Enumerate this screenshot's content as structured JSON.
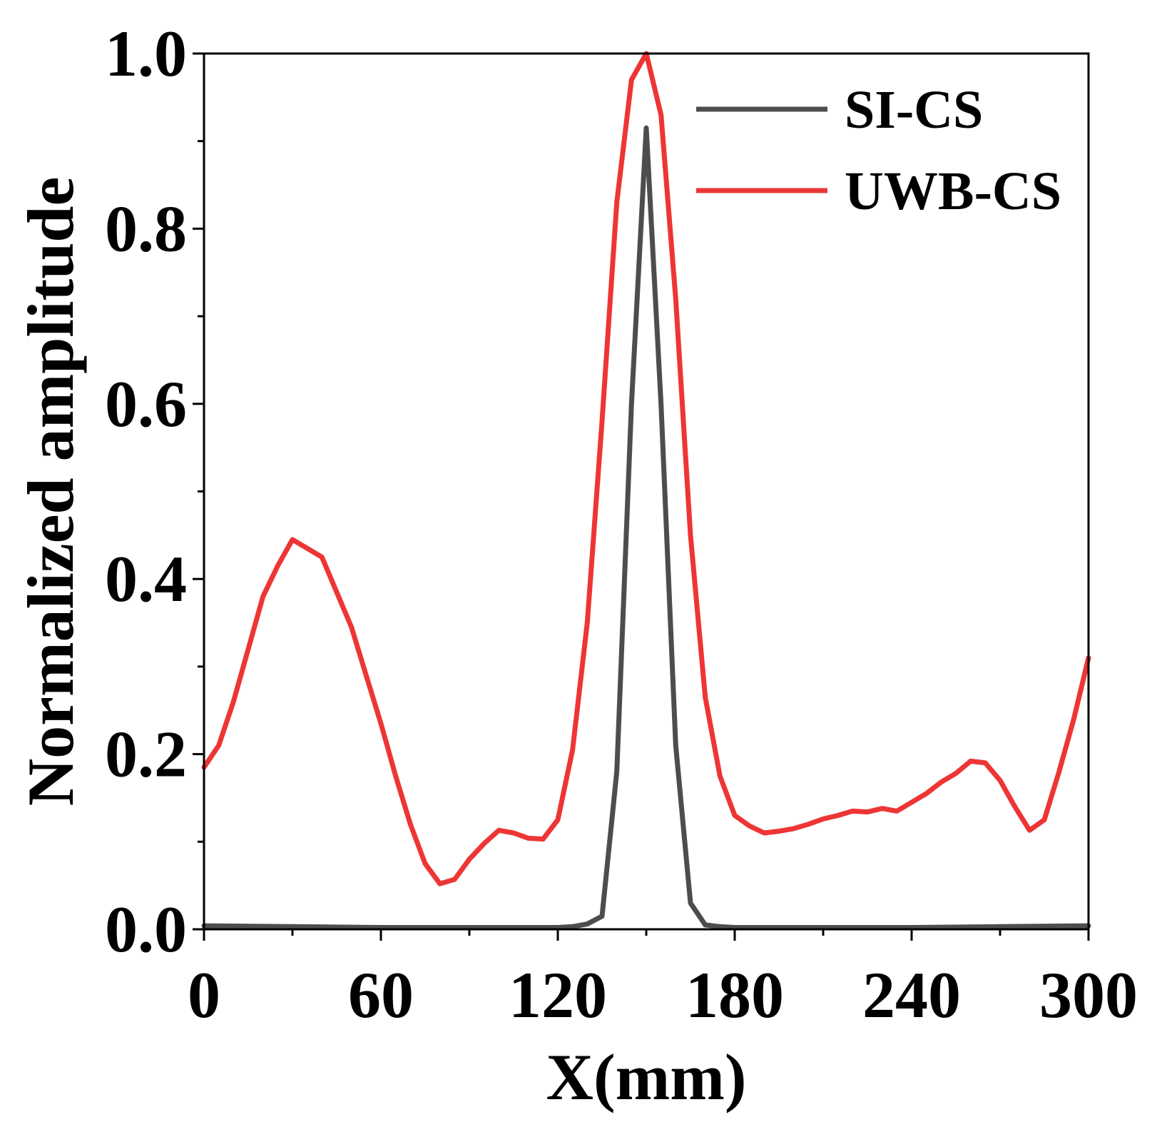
{
  "chart_data": {
    "type": "line",
    "title": "",
    "xlabel": "X(mm)",
    "ylabel": "Normalized amplitude",
    "xlim": [
      0,
      300
    ],
    "ylim": [
      0,
      1.0
    ],
    "grid": false,
    "legend_position": "top-right",
    "x_ticks": [
      0,
      60,
      120,
      180,
      240,
      300
    ],
    "x_tick_labels": [
      "0",
      "60",
      "120",
      "180",
      "240",
      "300"
    ],
    "y_ticks": [
      0,
      0.2,
      0.4,
      0.6,
      0.8,
      1.0
    ],
    "y_tick_labels": [
      "0.0",
      "0.2",
      "0.4",
      "0.6",
      "0.8",
      "1.0"
    ],
    "series": [
      {
        "name": "SI-CS",
        "color": "#4d4d4d",
        "x": [
          0,
          30,
          60,
          90,
          120,
          125,
          130,
          135,
          140,
          145,
          150,
          155,
          160,
          165,
          170,
          175,
          180,
          210,
          240,
          270,
          300
        ],
        "y": [
          0.004,
          0.003,
          0.002,
          0.002,
          0.002,
          0.003,
          0.006,
          0.015,
          0.18,
          0.6,
          0.915,
          0.6,
          0.21,
          0.03,
          0.005,
          0.003,
          0.002,
          0.002,
          0.002,
          0.003,
          0.004
        ]
      },
      {
        "name": "UWB-CS",
        "color": "#ee3535",
        "x": [
          0,
          5,
          10,
          15,
          20,
          25,
          30,
          35,
          40,
          45,
          50,
          55,
          60,
          65,
          70,
          75,
          80,
          85,
          90,
          95,
          100,
          105,
          110,
          115,
          120,
          125,
          130,
          135,
          140,
          145,
          150,
          155,
          160,
          165,
          170,
          175,
          180,
          185,
          190,
          195,
          200,
          205,
          210,
          215,
          220,
          225,
          230,
          235,
          240,
          245,
          250,
          255,
          260,
          265,
          270,
          275,
          280,
          285,
          290,
          295,
          300
        ],
        "y": [
          0.185,
          0.21,
          0.26,
          0.32,
          0.38,
          0.415,
          0.445,
          0.435,
          0.425,
          0.385,
          0.345,
          0.29,
          0.235,
          0.175,
          0.12,
          0.075,
          0.052,
          0.057,
          0.08,
          0.098,
          0.113,
          0.11,
          0.104,
          0.103,
          0.125,
          0.205,
          0.35,
          0.58,
          0.83,
          0.97,
          1.0,
          0.93,
          0.72,
          0.45,
          0.265,
          0.175,
          0.13,
          0.118,
          0.11,
          0.112,
          0.115,
          0.12,
          0.126,
          0.13,
          0.135,
          0.134,
          0.138,
          0.135,
          0.145,
          0.155,
          0.168,
          0.178,
          0.192,
          0.19,
          0.17,
          0.14,
          0.113,
          0.125,
          0.18,
          0.24,
          0.31
        ]
      }
    ]
  }
}
